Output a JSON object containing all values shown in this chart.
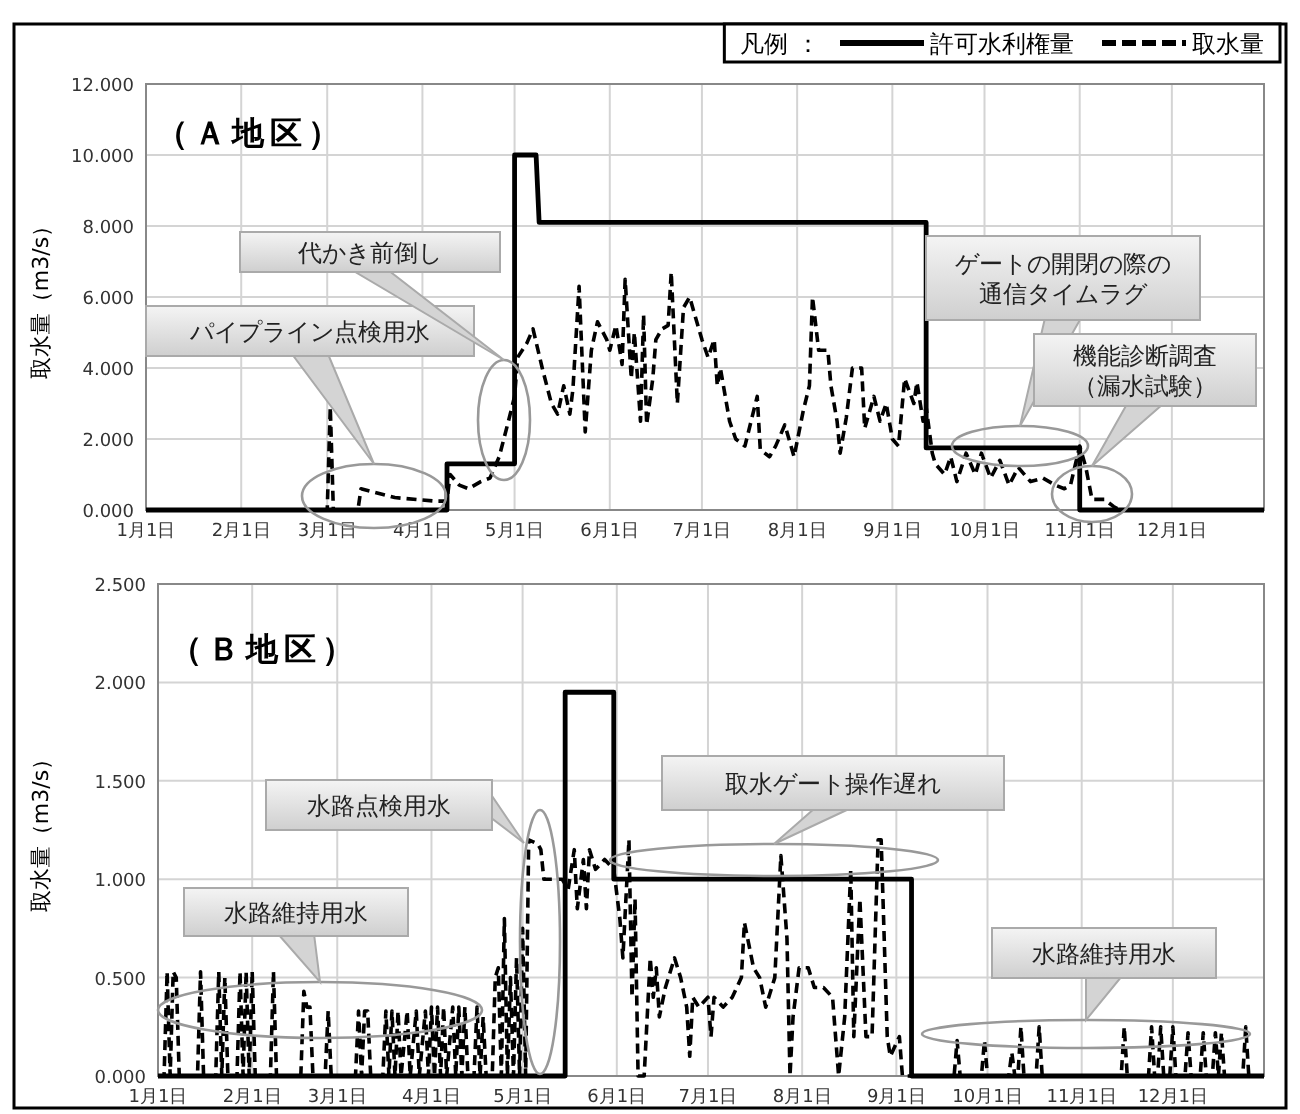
{
  "chart_data": [
    {
      "type": "line",
      "title": "（Ａ地区）",
      "ylabel": "取水量（m3/s）",
      "legend_title": "凡例 ：",
      "legend": "top right",
      "grid": true,
      "marker": "none",
      "xlim": [
        "--01-01",
        "--12-31"
      ],
      "xticks": [
        {
          "value": "--01-01",
          "label": "1月1日"
        },
        {
          "value": "--02-01",
          "label": "2月1日"
        },
        {
          "value": "--03-01",
          "label": "3月1日"
        },
        {
          "value": "--04-01",
          "label": "4月1日"
        },
        {
          "value": "--05-01",
          "label": "5月1日"
        },
        {
          "value": "--06-01",
          "label": "6月1日"
        },
        {
          "value": "--07-01",
          "label": "7月1日"
        },
        {
          "value": "--08-01",
          "label": "8月1日"
        },
        {
          "value": "--09-01",
          "label": "9月1日"
        },
        {
          "value": "--10-01",
          "label": "10月1日"
        },
        {
          "value": "--11-01",
          "label": "11月1日"
        },
        {
          "value": "--12-01",
          "label": "12月1日"
        }
      ],
      "ylim": [
        0,
        12
      ],
      "yticks": [
        {
          "value": 0,
          "label": "0.000"
        },
        {
          "value": 2,
          "label": "2.000"
        },
        {
          "value": 4,
          "label": "4.000"
        },
        {
          "value": 6,
          "label": "6.000"
        },
        {
          "value": 8,
          "label": "8.000"
        },
        {
          "value": 10,
          "label": "10.000"
        },
        {
          "value": 12,
          "label": "12.000"
        }
      ],
      "series": [
        {
          "name": "許可水利権量",
          "color": "#000000",
          "line_style": "solid",
          "x": [
            "--01-01",
            "--04-09",
            "--04-09",
            "--05-01",
            "--05-01",
            "--05-08",
            "--05-09",
            "--09-12",
            "--09-12",
            "--11-01",
            "--11-01",
            "--12-31"
          ],
          "values": [
            0,
            0,
            1.3,
            1.3,
            10,
            10,
            8.1,
            8.1,
            1.75,
            1.75,
            0,
            0
          ]
        },
        {
          "name": "取水量",
          "color": "#000000",
          "line_style": "dashed",
          "x": [
            "--01-01",
            "--03-01",
            "--03-02",
            "--03-03",
            "--03-11",
            "--03-12",
            "--03-23",
            "--04-05",
            "--04-09",
            "--04-10",
            "--04-13",
            "--04-16",
            "--04-20",
            "--04-23",
            "--04-26",
            "--04-29",
            "--05-01",
            "--05-02",
            "--05-05",
            "--05-07",
            "--05-10",
            "--05-13",
            "--05-15",
            "--05-17",
            "--05-19",
            "--05-20",
            "--05-22",
            "--05-24",
            "--05-26",
            "--05-28",
            "--05-31",
            "--06-01",
            "--06-03",
            "--06-05",
            "--06-06",
            "--06-08",
            "--06-09",
            "--06-11",
            "--06-12",
            "--06-13",
            "--06-15",
            "--06-16",
            "--06-18",
            "--06-20",
            "--06-21",
            "--06-23",
            "--06-25",
            "--06-27",
            "--07-01",
            "--07-03",
            "--07-05",
            "--07-06",
            "--07-07",
            "--07-10",
            "--07-12",
            "--07-15",
            "--07-19",
            "--07-20",
            "--07-23",
            "--07-25",
            "--07-28",
            "--07-31",
            "--08-03",
            "--08-05",
            "--08-06",
            "--08-08",
            "--08-11",
            "--08-12",
            "--08-14",
            "--08-15",
            "--08-17",
            "--08-19",
            "--08-22",
            "--08-23",
            "--08-26",
            "--08-28",
            "--08-30",
            "--09-01",
            "--09-03",
            "--09-05",
            "--09-08",
            "--09-09",
            "--09-11",
            "--09-12",
            "--09-14",
            "--09-15",
            "--09-18",
            "--09-20",
            "--09-22",
            "--09-25",
            "--09-28",
            "--09-30",
            "--10-03",
            "--10-06",
            "--10-09",
            "--10-12",
            "--10-16",
            "--10-20",
            "--10-24",
            "--10-27",
            "--10-29",
            "--11-01",
            "--11-03",
            "--11-05",
            "--11-09",
            "--11-12",
            "--11-14",
            "--12-31"
          ],
          "values": [
            0,
            0,
            2.9,
            0,
            0,
            0.6,
            0.35,
            0.25,
            0.25,
            1.0,
            0.7,
            0.6,
            0.8,
            0.9,
            1.5,
            2.5,
            3.2,
            4.3,
            4.7,
            5.1,
            4.0,
            3.0,
            2.7,
            3.5,
            2.7,
            3.4,
            6.3,
            2.2,
            4.5,
            5.3,
            4.8,
            4.5,
            5.2,
            4.1,
            6.5,
            3.7,
            5.0,
            2.5,
            5.5,
            2.4,
            3.7,
            4.8,
            5.1,
            5.2,
            6.7,
            3.0,
            5.7,
            6.0,
            4.8,
            4.3,
            4.8,
            3.5,
            4.0,
            2.5,
            2.0,
            1.8,
            3.2,
            1.7,
            1.5,
            1.8,
            2.4,
            1.5,
            2.8,
            3.5,
            6.0,
            4.5,
            4.5,
            3.5,
            2.5,
            1.6,
            2.6,
            4.0,
            4.0,
            2.3,
            3.2,
            2.5,
            3.0,
            2.0,
            1.8,
            3.7,
            3.0,
            3.6,
            2.5,
            2.9,
            1.6,
            1.3,
            1.0,
            1.5,
            0.8,
            1.6,
            1.0,
            1.6,
            0.9,
            1.4,
            0.7,
            1.2,
            0.8,
            0.9,
            0.7,
            0.6,
            0.7,
            1.8,
            1.2,
            0.3,
            0.3,
            0.1,
            0,
            0
          ]
        }
      ],
      "annotations": [
        "パイプライン点検用水",
        "代かき前倒し",
        "ゲートの開閉の際の通信タイムラグ",
        "機能診断調査（漏水試験）"
      ]
    },
    {
      "type": "line",
      "title": "（Ｂ地区）",
      "ylabel": "取水量（m3/s）",
      "grid": true,
      "marker": "none",
      "xlim": [
        "--01-01",
        "--12-31"
      ],
      "xticks": [
        {
          "value": "--01-01",
          "label": "1月1日"
        },
        {
          "value": "--02-01",
          "label": "2月1日"
        },
        {
          "value": "--03-01",
          "label": "3月1日"
        },
        {
          "value": "--04-01",
          "label": "4月1日"
        },
        {
          "value": "--05-01",
          "label": "5月1日"
        },
        {
          "value": "--06-01",
          "label": "6月1日"
        },
        {
          "value": "--07-01",
          "label": "7月1日"
        },
        {
          "value": "--08-01",
          "label": "8月1日"
        },
        {
          "value": "--09-01",
          "label": "9月1日"
        },
        {
          "value": "--10-01",
          "label": "10月1日"
        },
        {
          "value": "--11-01",
          "label": "11月1日"
        },
        {
          "value": "--12-01",
          "label": "12月1日"
        }
      ],
      "ylim": [
        0,
        2.5
      ],
      "yticks": [
        {
          "value": 0,
          "label": "0.000"
        },
        {
          "value": 0.5,
          "label": "0.500"
        },
        {
          "value": 1,
          "label": "1.000"
        },
        {
          "value": 1.5,
          "label": "1.500"
        },
        {
          "value": 2,
          "label": "2.000"
        },
        {
          "value": 2.5,
          "label": "2.500"
        }
      ],
      "series": [
        {
          "color": "#000000",
          "line_style": "solid",
          "x": [
            "--01-01",
            "--05-15",
            "--05-15",
            "--05-31",
            "--05-31",
            "--09-06",
            "--09-06",
            "--12-31"
          ],
          "values": [
            0,
            0,
            1.95,
            1.95,
            1.0,
            1.0,
            0,
            0
          ]
        },
        {
          "color": "#000000",
          "line_style": "dashed",
          "x": [
            "--01-01",
            "--01-03",
            "--01-04",
            "--01-05",
            "--01-06",
            "--01-07",
            "--01-08",
            "--01-14",
            "--01-15",
            "--01-16",
            "--01-20",
            "--01-21",
            "--01-22",
            "--01-23",
            "--01-24",
            "--01-27",
            "--01-28",
            "--01-29",
            "--01-30",
            "--01-31",
            "--02-01",
            "--02-02",
            "--02-07",
            "--02-08",
            "--02-09",
            "--02-17",
            "--02-18",
            "--02-19",
            "--02-20",
            "--02-21",
            "--02-25",
            "--02-26",
            "--02-27",
            "--03-07",
            "--03-08",
            "--03-09",
            "--03-10",
            "--03-11",
            "--03-12",
            "--03-16",
            "--03-17",
            "--03-18",
            "--03-19",
            "--03-20",
            "--03-21",
            "--03-22",
            "--03-24",
            "--03-25",
            "--03-27",
            "--03-28",
            "--03-30",
            "--03-31",
            "--04-01",
            "--04-02",
            "--04-03",
            "--04-04",
            "--04-05",
            "--04-06",
            "--04-08",
            "--04-09",
            "--04-10",
            "--04-11",
            "--04-12",
            "--04-13",
            "--04-15",
            "--04-16",
            "--04-17",
            "--04-18",
            "--04-19",
            "--04-21",
            "--04-22",
            "--04-23",
            "--04-24",
            "--04-25",
            "--04-26",
            "--04-27",
            "--04-28",
            "--04-29",
            "--04-30",
            "--05-01",
            "--05-02",
            "--05-03",
            "--05-06",
            "--05-07",
            "--05-08",
            "--05-14",
            "--05-16",
            "--05-18",
            "--05-19",
            "--05-21",
            "--05-22",
            "--05-23",
            "--05-25",
            "--05-28",
            "--05-31",
            "--06-02",
            "--06-03",
            "--06-05",
            "--06-06",
            "--06-07",
            "--06-08",
            "--06-10",
            "--06-12",
            "--06-13",
            "--06-14",
            "--06-15",
            "--06-17",
            "--06-20",
            "--06-22",
            "--06-24",
            "--06-25",
            "--06-26",
            "--06-28",
            "--07-01",
            "--07-02",
            "--07-03",
            "--07-06",
            "--07-09",
            "--07-12",
            "--07-13",
            "--07-16",
            "--07-18",
            "--07-20",
            "--07-23",
            "--07-25",
            "--07-27",
            "--07-28",
            "--07-29",
            "--07-31",
            "--08-03",
            "--08-05",
            "--08-08",
            "--08-11",
            "--08-13",
            "--08-15",
            "--08-17",
            "--08-18",
            "--08-20",
            "--08-22",
            "--08-24",
            "--08-26",
            "--08-27",
            "--08-29",
            "--08-30",
            "--09-02",
            "--09-03",
            "--09-20",
            "--09-21",
            "--09-22",
            "--09-29",
            "--09-30",
            "--10-01",
            "--10-08",
            "--10-09",
            "--10-10",
            "--10-11",
            "--10-12",
            "--10-13",
            "--10-17",
            "--10-18",
            "--10-19",
            "--11-14",
            "--11-15",
            "--11-16",
            "--11-23",
            "--11-24",
            "--11-25",
            "--11-26",
            "--11-27",
            "--11-28",
            "--11-30",
            "--12-01",
            "--12-02",
            "--12-05",
            "--12-06",
            "--12-07",
            "--12-10",
            "--12-11",
            "--12-12",
            "--12-14",
            "--12-15",
            "--12-16",
            "--12-17",
            "--12-18",
            "--12-24",
            "--12-25",
            "--12-26",
            "--12-31"
          ],
          "values": [
            0,
            0,
            0.53,
            0,
            0.53,
            0.5,
            0,
            0,
            0.53,
            0,
            0,
            0.53,
            0,
            0.5,
            0,
            0,
            0.53,
            0,
            0.53,
            0,
            0.53,
            0,
            0,
            0.53,
            0,
            0,
            0.43,
            0.35,
            0.35,
            0,
            0,
            0.33,
            0,
            0,
            0.33,
            0,
            0.33,
            0.33,
            0,
            0,
            0.33,
            0,
            0.33,
            0,
            0.33,
            0,
            0.33,
            0,
            0.33,
            0,
            0.33,
            0,
            0.35,
            0,
            0.35,
            0,
            0.35,
            0,
            0.35,
            0,
            0.35,
            0,
            0.35,
            0,
            0,
            0.35,
            0,
            0.3,
            0,
            0,
            0.5,
            0.55,
            0,
            0.8,
            0,
            0.5,
            0,
            0.6,
            0,
            0.75,
            0,
            1.2,
            1.18,
            1.15,
            1.0,
            1.0,
            0.95,
            1.15,
            0.85,
            1.1,
            0.85,
            1.15,
            1.05,
            1.1,
            1.05,
            0.8,
            0.6,
            1.2,
            0.4,
            0.9,
            0,
            0,
            0.6,
            0.4,
            0.55,
            0.3,
            0.45,
            0.6,
            0.5,
            0.35,
            0.1,
            0.4,
            0.35,
            0.4,
            0.2,
            0.4,
            0.35,
            0.4,
            0.5,
            0.78,
            0.55,
            0.5,
            0.35,
            0.5,
            1.12,
            0.7,
            0,
            0.3,
            0.55,
            0.55,
            0.45,
            0.45,
            0.4,
            0,
            0.3,
            1.05,
            0.2,
            0.9,
            0.2,
            0.2,
            1.2,
            1.2,
            0.2,
            0.1,
            0.2,
            0,
            0,
            0.18,
            0,
            0,
            0.18,
            0,
            0,
            0.12,
            0,
            0,
            0.25,
            0,
            0,
            0.25,
            0,
            0,
            0.25,
            0,
            0,
            0.25,
            0,
            0,
            0.25,
            0,
            0,
            0.25,
            0,
            0,
            0.22,
            0,
            0,
            0.22,
            0,
            0,
            0.22,
            0,
            0.22,
            0,
            0,
            0.25,
            0,
            0
          ]
        }
      ],
      "annotations": [
        "水路点検用水",
        "取水ゲート操作遅れ",
        "水路維持用水",
        "水路維持用水"
      ]
    }
  ]
}
